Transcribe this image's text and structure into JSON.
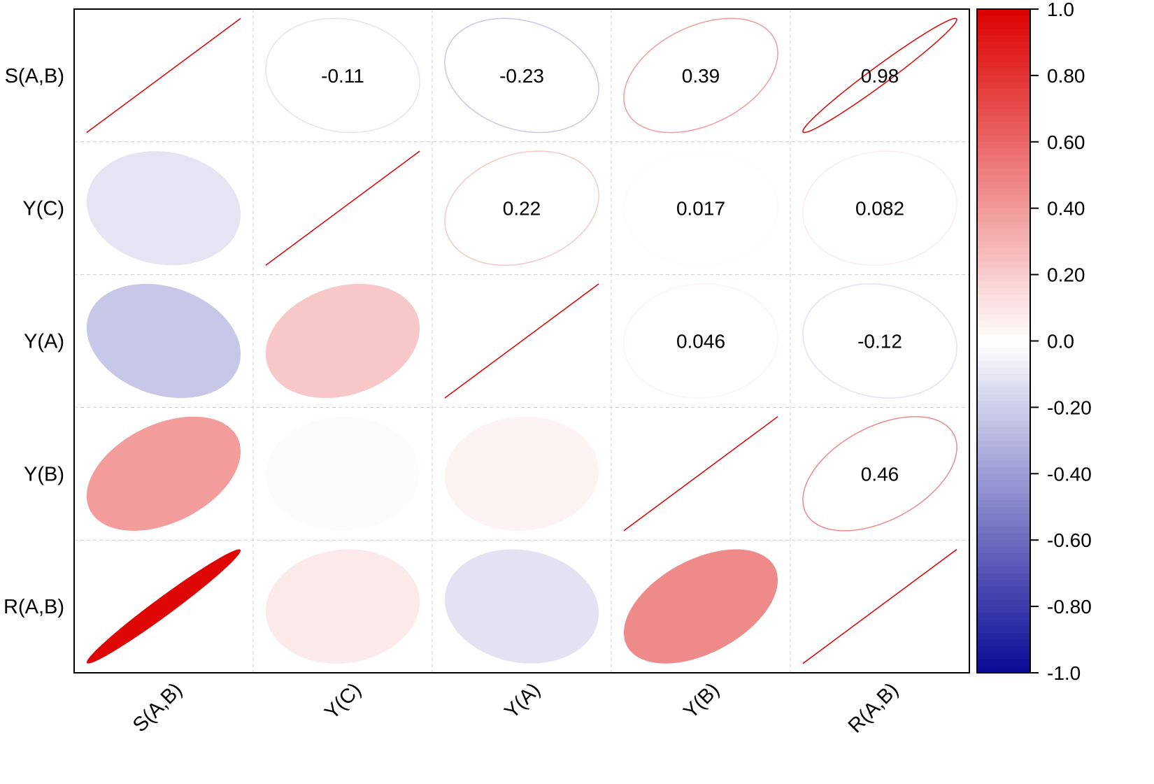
{
  "chart_data": {
    "type": "heatmap",
    "subtype": "correlation-ellipse-matrix",
    "variables": [
      "S(A,B)",
      "Y(C)",
      "Y(A)",
      "Y(B)",
      "R(A,B)"
    ],
    "matrix": [
      [
        1,
        -0.11,
        -0.23,
        0.39,
        0.98
      ],
      [
        -0.11,
        1,
        0.22,
        0.017,
        0.082
      ],
      [
        -0.23,
        0.22,
        1,
        0.046,
        -0.12
      ],
      [
        0.39,
        0.017,
        0.046,
        1,
        0.46
      ],
      [
        0.98,
        0.082,
        -0.12,
        0.46,
        1
      ]
    ],
    "upper_labels": {
      "0-1": "-0.11",
      "0-2": "-0.23",
      "0-3": "0.39",
      "0-4": "0.98",
      "1-2": "0.22",
      "1-3": "0.017",
      "1-4": "0.082",
      "2-3": "0.046",
      "2-4": "-0.12",
      "3-4": "0.46"
    },
    "lower_style": "filled ellipse",
    "upper_style": "outlined ellipse with value",
    "colorbar": {
      "range": [
        -1,
        1
      ],
      "ticks": [
        "1.0",
        "0.80",
        "0.60",
        "0.40",
        "0.20",
        "0.0",
        "-0.20",
        "-0.40",
        "-0.60",
        "-0.80",
        "-1.0"
      ],
      "tick_values": [
        1,
        0.8,
        0.6,
        0.4,
        0.2,
        0,
        -0.2,
        -0.4,
        -0.6,
        -0.8,
        -1
      ],
      "colors": {
        "negative": "#0a0a96",
        "zero": "#ffffff",
        "positive": "#dd0000"
      }
    },
    "grid": true
  }
}
